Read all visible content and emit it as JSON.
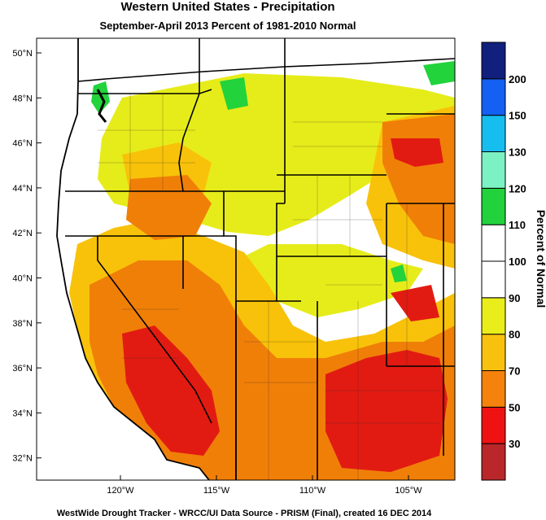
{
  "title": "Western United States - Precipitation",
  "subtitle": "September-April 2013  Percent of 1981-2010 Normal",
  "footer": "WestWide Drought Tracker - WRCC/UI  Data Source - PRISM (Final), created 16 DEC 2014",
  "map": {
    "lat_labels": [
      "50°N",
      "48°N",
      "46°N",
      "44°N",
      "42°N",
      "40°N",
      "38°N",
      "36°N",
      "34°N",
      "32°N"
    ],
    "lon_labels": [
      "120°W",
      "115°W",
      "110°W",
      "105°W"
    ],
    "colors": {
      "ocean": "#ffffff",
      "dry_severe": "#e21b12",
      "dry": "#f07f08",
      "below_normal": "#f8c20a",
      "slightly_below": "#e6ec1a",
      "normal": "#ffffff",
      "wet": "#22d33c",
      "border": "#000000"
    }
  },
  "colorbar": {
    "title": "Percent of Normal",
    "labels": [
      "200",
      "150",
      "130",
      "120",
      "110",
      "100",
      "90",
      "80",
      "70",
      "50",
      "30"
    ],
    "colors": [
      "#b9272a",
      "#ef1212",
      "#f5820c",
      "#f8c10e",
      "#e9ee1b",
      "#ffffff",
      "#ffffff",
      "#22d23c",
      "#7cf2c4",
      "#16bef0",
      "#1360f2",
      "#10207c"
    ]
  }
}
